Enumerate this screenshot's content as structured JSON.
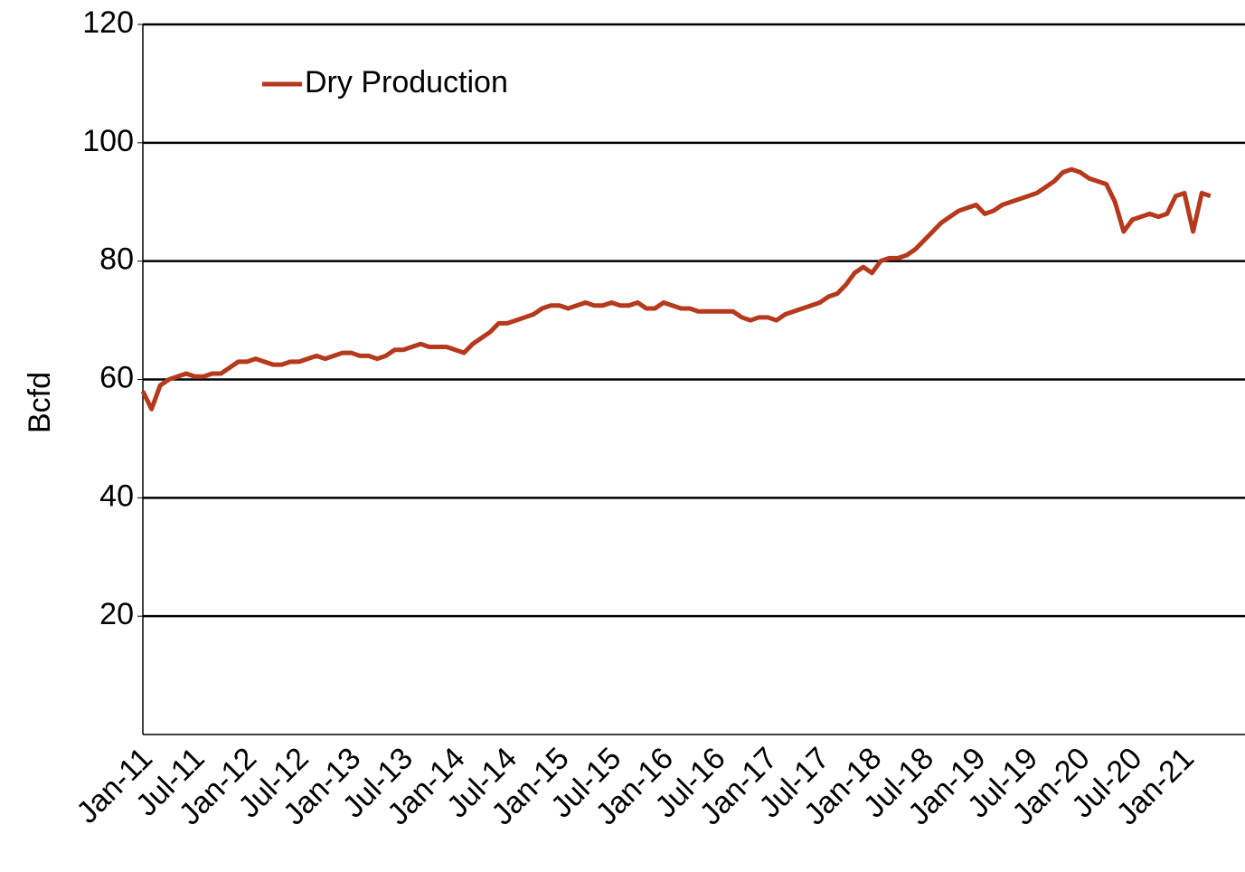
{
  "chart_data": {
    "type": "line",
    "y_label": "Bcfd",
    "ylim": [
      0,
      120
    ],
    "yticks": [
      20,
      40,
      60,
      80,
      100,
      120
    ],
    "grid": true,
    "legend": "upper-left",
    "categories": [
      "Jan-11",
      null,
      null,
      null,
      null,
      null,
      "Jul-11",
      null,
      null,
      null,
      null,
      null,
      "Jan-12",
      null,
      null,
      null,
      null,
      null,
      "Jul-12",
      null,
      null,
      null,
      null,
      null,
      "Jan-13",
      null,
      null,
      null,
      null,
      null,
      "Jul-13",
      null,
      null,
      null,
      null,
      null,
      "Jan-14",
      null,
      null,
      null,
      null,
      null,
      "Jul-14",
      null,
      null,
      null,
      null,
      null,
      "Jan-15",
      null,
      null,
      null,
      null,
      null,
      "Jul-15",
      null,
      null,
      null,
      null,
      null,
      "Jan-16",
      null,
      null,
      null,
      null,
      null,
      "Jul-16",
      null,
      null,
      null,
      null,
      null,
      "Jan-17",
      null,
      null,
      null,
      null,
      null,
      "Jul-17",
      null,
      null,
      null,
      null,
      null,
      "Jan-18",
      null,
      null,
      null,
      null,
      null,
      "Jul-18",
      null,
      null,
      null,
      null,
      null,
      "Jan-19",
      null,
      null,
      null,
      null,
      null,
      "Jul-19",
      null,
      null,
      null,
      null,
      null,
      "Jan-20",
      null,
      null,
      null,
      null,
      null,
      "Jul-20",
      null,
      null,
      null,
      null,
      null,
      "Jan-21",
      null,
      null,
      null
    ],
    "series": [
      {
        "name": "Dry Production",
        "color": "#b5391c",
        "values": [
          58,
          55,
          59,
          60,
          60.5,
          61,
          60.5,
          60.5,
          61,
          61,
          62,
          63,
          63,
          63.5,
          63,
          62.5,
          62.5,
          63,
          63,
          63.5,
          64,
          63.5,
          64,
          64.5,
          64.5,
          64,
          64,
          63.5,
          64,
          65,
          65,
          65.5,
          66,
          65.5,
          65.5,
          65.5,
          65,
          64.5,
          66,
          67,
          68,
          69.5,
          69.5,
          70,
          70.5,
          71,
          72,
          72.5,
          72.5,
          72,
          72.5,
          73,
          72.5,
          72.5,
          73,
          72.5,
          72.5,
          73,
          72,
          72,
          73,
          72.5,
          72,
          72,
          71.5,
          71.5,
          71.5,
          71.5,
          71.5,
          70.5,
          70,
          70.5,
          70.5,
          70,
          71,
          71.5,
          72,
          72.5,
          73,
          74,
          74.5,
          76,
          78,
          79,
          78,
          80,
          80.5,
          80.5,
          81,
          82,
          83.5,
          85,
          86.5,
          87.5,
          88.5,
          89,
          89.5,
          88,
          88.5,
          89.5,
          90,
          90.5,
          91,
          91.5,
          92.5,
          93.5,
          95,
          95.5,
          95,
          94,
          93.5,
          93,
          90,
          85,
          87,
          87.5,
          88,
          87.5,
          88,
          91,
          91.5,
          85,
          91.5,
          91
        ]
      }
    ]
  }
}
